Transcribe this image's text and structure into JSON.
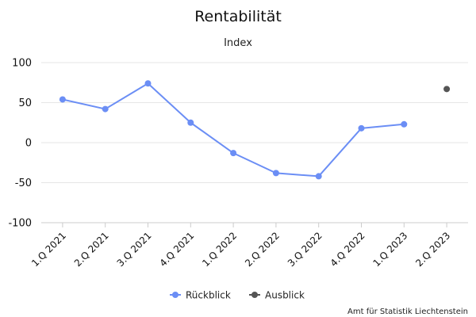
{
  "chart_data": {
    "type": "line",
    "title": "Rentabilität",
    "subtitle": "Index",
    "xlabel": "",
    "ylabel": "",
    "categories": [
      "1.Q 2021",
      "2.Q 2021",
      "3.Q 2021",
      "4.Q 2021",
      "1.Q 2022",
      "2.Q 2022",
      "3.Q 2022",
      "4.Q 2022",
      "1.Q 2023",
      "2.Q 2023"
    ],
    "ylim": [
      -100,
      100
    ],
    "yticks": [
      100,
      50,
      0,
      -50,
      -100
    ],
    "grid": true,
    "legend_position": "bottom",
    "series": [
      {
        "name": "Rückblick",
        "color": "#6b8ef5",
        "values": [
          54,
          42,
          74,
          25,
          -13,
          -38,
          -42,
          18,
          23,
          null
        ]
      },
      {
        "name": "Ausblick",
        "color": "#555555",
        "values": [
          null,
          null,
          null,
          null,
          null,
          null,
          null,
          null,
          null,
          67
        ]
      }
    ],
    "credit": "Amt für Statistik Liechtenstein"
  }
}
